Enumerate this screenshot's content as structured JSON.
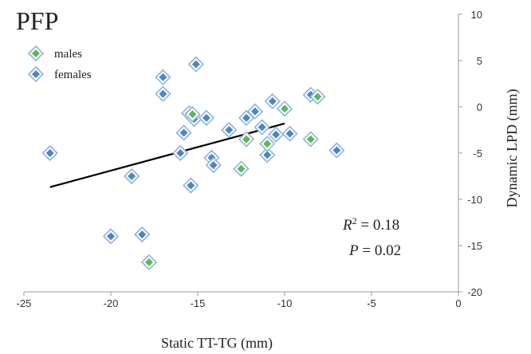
{
  "chart_data": {
    "type": "scatter",
    "title": "PFP",
    "xlabel": "Static TT-TG (mm)",
    "ylabel": "Dynamic LPD (mm)",
    "xlim": [
      -25,
      0
    ],
    "ylim": [
      -20,
      10
    ],
    "xticks": [
      -25,
      -20,
      -15,
      -10,
      -5,
      0
    ],
    "yticks": [
      10,
      5,
      0,
      -5,
      -10,
      -15,
      -20
    ],
    "x_axis_position": "bottom",
    "y_axis_position": "right",
    "grid": false,
    "legend_position": "top-left",
    "series": [
      {
        "name": "males",
        "color": "#5cb85c",
        "marker": "diamond",
        "points": [
          [
            -15.3,
            -0.8
          ],
          [
            -12.5,
            -6.7
          ],
          [
            -12.2,
            -3.5
          ],
          [
            -11.0,
            -4.0
          ],
          [
            -10.0,
            -0.2
          ],
          [
            -8.5,
            -3.5
          ],
          [
            -8.1,
            1.1
          ],
          [
            -17.8,
            -16.8
          ]
        ]
      },
      {
        "name": "females",
        "color": "#4a86c8",
        "marker": "diamond",
        "points": [
          [
            -23.5,
            -5.0
          ],
          [
            -20.0,
            -14.0
          ],
          [
            -18.8,
            -7.5
          ],
          [
            -18.2,
            -13.8
          ],
          [
            -17.0,
            3.2
          ],
          [
            -17.0,
            1.4
          ],
          [
            -16.0,
            -5.0
          ],
          [
            -15.8,
            -2.8
          ],
          [
            -15.5,
            -0.7
          ],
          [
            -15.2,
            -1.3
          ],
          [
            -15.4,
            -8.5
          ],
          [
            -15.1,
            4.6
          ],
          [
            -14.5,
            -1.2
          ],
          [
            -14.2,
            -5.5
          ],
          [
            -14.1,
            -6.3
          ],
          [
            -13.2,
            -2.5
          ],
          [
            -12.2,
            -1.2
          ],
          [
            -11.7,
            -0.5
          ],
          [
            -11.3,
            -2.2
          ],
          [
            -11.0,
            -5.2
          ],
          [
            -10.7,
            0.6
          ],
          [
            -10.5,
            -3.0
          ],
          [
            -9.7,
            -2.9
          ],
          [
            -8.5,
            1.3
          ],
          [
            -7.0,
            -4.7
          ]
        ]
      }
    ],
    "trendline": {
      "slope": 0.51,
      "intercept": 3.3,
      "x_range": [
        -23.5,
        -10.0
      ],
      "color": "#000000"
    },
    "annotations": {
      "r2_label": "R",
      "r2_sup": "2",
      "r2_value": " = 0.18",
      "p_label": "P",
      "p_value": " = 0.02"
    }
  }
}
